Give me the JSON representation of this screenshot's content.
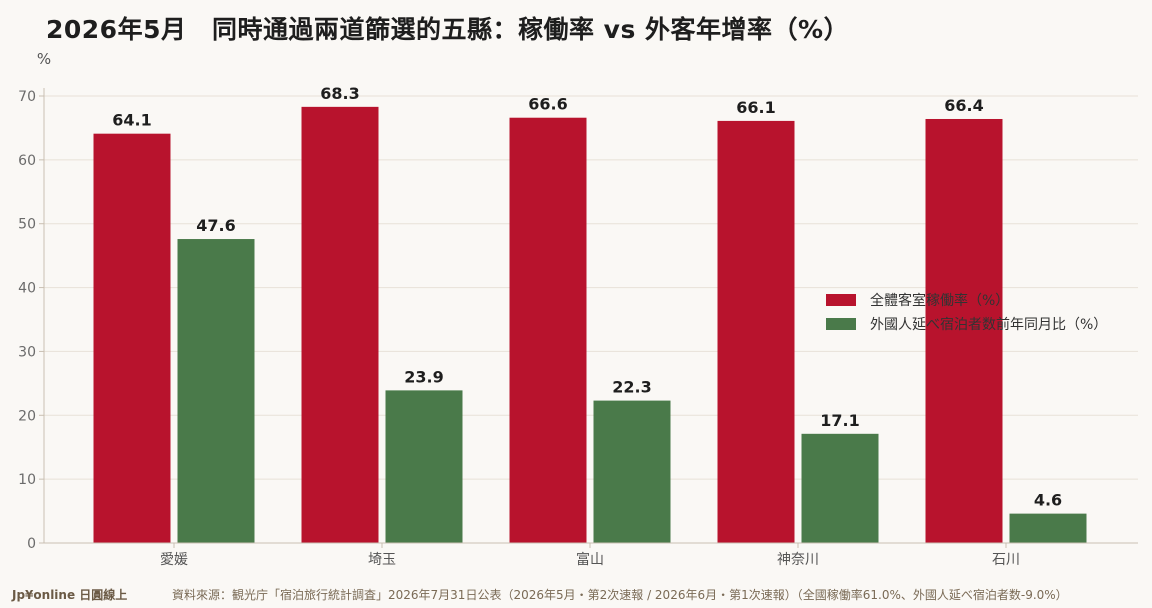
{
  "title": "2026年5月　同時通過兩道篩選的五縣：稼働率 vs 外客年增率（%）",
  "footer": {
    "brand": "Jp¥online 日圓線上",
    "source": "資料來源：観光庁「宿泊旅行統計調査」2026年7月31日公表（2026年5月・第2次速報 / 2026年6月・第1次速報）（全國稼働率61.0%、外國人延べ宿泊者数-9.0%）"
  },
  "colors": {
    "series1": "#b8132d",
    "series2": "#4a7a4a",
    "grid": "#e8e1d8",
    "axis": "#c9bfb2",
    "tick": "#6b6b6b"
  },
  "chart_data": {
    "type": "bar",
    "title": "2026年5月　同時通過兩道篩選的五縣：稼働率 vs 外客年增率（%）",
    "xlabel": "",
    "ylabel": "%",
    "ylim": [
      0,
      70
    ],
    "yticks": [
      "0",
      "10",
      "20",
      "30",
      "40",
      "50",
      "60",
      "70"
    ],
    "grid": true,
    "legend": "center-right",
    "categories": [
      "愛媛",
      "埼玉",
      "富山",
      "神奈川",
      "石川"
    ],
    "series": [
      {
        "name": "全體客室稼働率（%）",
        "values": [
          64.1,
          68.3,
          66.6,
          66.1,
          66.4
        ]
      },
      {
        "name": "外國人延べ宿泊者数前年同月比（%）",
        "values": [
          47.6,
          23.9,
          22.3,
          17.1,
          4.6
        ]
      }
    ]
  }
}
